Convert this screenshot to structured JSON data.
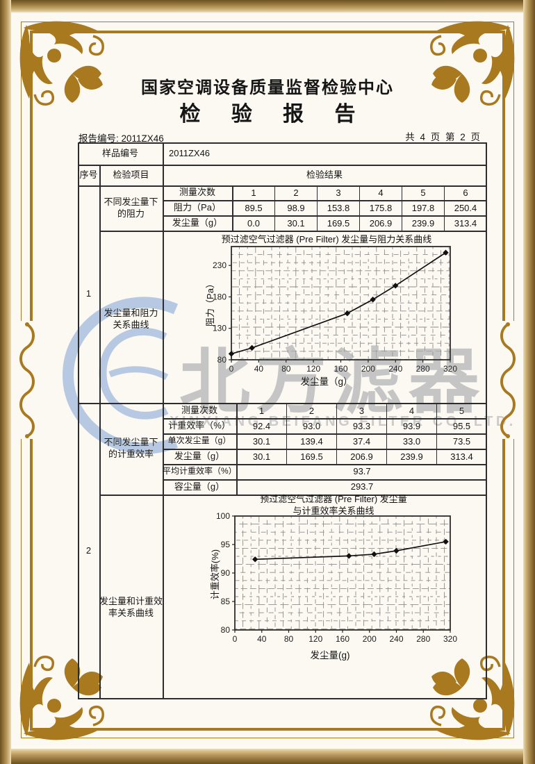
{
  "header": {
    "org": "国家空调设备质量监督检验中心",
    "title": "检 验 报 告",
    "report_no": "报告编号: 2011ZX46",
    "page_info": "共 4 页 第 2 页"
  },
  "table": {
    "sample_label": "样品编号",
    "sample_value": "2011ZX46",
    "col_seq": "序号",
    "col_item": "检验项目",
    "col_result": "检验结果",
    "section1": {
      "seq": "1",
      "item_line1": "不同发尘量下",
      "item_line2": "的阻力",
      "chart_item_line1": "发尘量和阻力",
      "chart_item_line2": "关系曲线",
      "row_labels": [
        "测量次数",
        "阻力（Pa）",
        "发尘量（g）"
      ],
      "rows": {
        "times": [
          "1",
          "2",
          "3",
          "4",
          "5",
          "6"
        ],
        "resistance": [
          "89.5",
          "98.9",
          "153.8",
          "175.8",
          "197.8",
          "250.4"
        ],
        "dust": [
          "0.0",
          "30.1",
          "169.5",
          "206.9",
          "239.9",
          "313.4"
        ]
      }
    },
    "section2": {
      "seq": "2",
      "item_line1": "不同发尘量下",
      "item_line2": "的计重效率",
      "chart_item_line1": "发尘量和计重效",
      "chart_item_line2": "率关系曲线",
      "row_labels": [
        "测量次数",
        "计重效率（%）",
        "单次发尘量（g）",
        "发尘量（g）"
      ],
      "rows": {
        "times": [
          "1",
          "2",
          "3",
          "4",
          "5"
        ],
        "efficiency": [
          "92.4",
          "93.0",
          "93.3",
          "93.9",
          "95.5"
        ],
        "single_dust": [
          "30.1",
          "139.4",
          "37.4",
          "33.0",
          "73.5"
        ],
        "dust": [
          "30.1",
          "169.5",
          "206.9",
          "239.9",
          "313.4"
        ]
      },
      "avg_label": "平均计重效率（%）",
      "avg_value": "93.7",
      "capacity_label": "容尘量（g）",
      "capacity_value": "293.7"
    }
  },
  "watermark": {
    "cn": "北方滤器",
    "en": "XINXIANG BEIFANG FILTER CO.,LTD."
  },
  "colors": {
    "frame_gold": "#a9791f",
    "band_dark": "#6b511f",
    "watermark_blue": "#b7c9e2",
    "watermark_gray": "#c5c5c5"
  },
  "chart_data": [
    {
      "type": "line",
      "title": "预过滤空气过滤器 (Pre Filter) 发尘量与阻力关系曲线",
      "xlabel": "发尘量（g）",
      "ylabel": "阻力（Pa）",
      "x": [
        0,
        30.1,
        169.5,
        206.9,
        239.9,
        313.4
      ],
      "y": [
        89.5,
        98.9,
        153.8,
        175.8,
        197.8,
        250.4
      ],
      "xlim": [
        0,
        320
      ],
      "ylim": [
        80,
        260
      ],
      "xticks": [
        0,
        40,
        80,
        120,
        160,
        200,
        240,
        280,
        320
      ],
      "yticks": [
        80,
        130,
        180,
        230
      ],
      "grid": true,
      "legend": "none",
      "marker": "diamond"
    },
    {
      "type": "line",
      "title": "预过滤空气过滤器 (Pre Filter) 发尘量",
      "title2": "与计重效率关系曲线",
      "xlabel": "发尘量(g)",
      "ylabel": "计重效率(%)",
      "x": [
        30.1,
        169.5,
        206.9,
        239.9,
        313.4
      ],
      "y": [
        92.4,
        93.0,
        93.3,
        93.9,
        95.5
      ],
      "xlim": [
        0,
        320
      ],
      "ylim": [
        80,
        100
      ],
      "xticks": [
        0,
        40,
        80,
        120,
        160,
        200,
        240,
        280,
        320
      ],
      "yticks": [
        80,
        85,
        90,
        95,
        100
      ],
      "grid": true,
      "legend": "none",
      "marker": "diamond"
    }
  ]
}
